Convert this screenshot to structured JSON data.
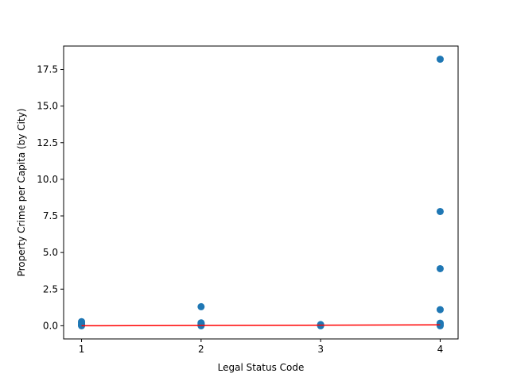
{
  "chart_data": {
    "type": "scatter",
    "title": "",
    "xlabel": "Legal Status Code",
    "ylabel": "Property Crime per Capita (by City)",
    "xlim": [
      0.85,
      4.15
    ],
    "ylim": [
      -0.9,
      19.1
    ],
    "xticks": [
      1,
      2,
      3,
      4
    ],
    "xtick_labels": [
      "1",
      "2",
      "3",
      "4"
    ],
    "yticks": [
      0.0,
      2.5,
      5.0,
      7.5,
      10.0,
      12.5,
      15.0,
      17.5
    ],
    "ytick_labels": [
      "0.0",
      "2.5",
      "5.0",
      "7.5",
      "10.0",
      "12.5",
      "15.0",
      "17.5"
    ],
    "grid": false,
    "series": [
      {
        "kind": "scatter",
        "color": "#1f77b4",
        "points": [
          {
            "x": 1,
            "y": 0.28
          },
          {
            "x": 1,
            "y": 0.2
          },
          {
            "x": 1,
            "y": 0.12
          },
          {
            "x": 1,
            "y": 0.06
          },
          {
            "x": 1,
            "y": 0.02
          },
          {
            "x": 1,
            "y": 0.0
          },
          {
            "x": 2,
            "y": 1.3
          },
          {
            "x": 2,
            "y": 0.2
          },
          {
            "x": 2,
            "y": 0.15
          },
          {
            "x": 2,
            "y": 0.1
          },
          {
            "x": 2,
            "y": 0.05
          },
          {
            "x": 2,
            "y": 0.02
          },
          {
            "x": 2,
            "y": 0.0
          },
          {
            "x": 3,
            "y": 0.08
          },
          {
            "x": 3,
            "y": 0.04
          },
          {
            "x": 3,
            "y": 0.02
          },
          {
            "x": 3,
            "y": 0.0
          },
          {
            "x": 4,
            "y": 18.2
          },
          {
            "x": 4,
            "y": 7.8
          },
          {
            "x": 4,
            "y": 3.9
          },
          {
            "x": 4,
            "y": 1.1
          },
          {
            "x": 4,
            "y": 0.18
          },
          {
            "x": 4,
            "y": 0.1
          },
          {
            "x": 4,
            "y": 0.04
          },
          {
            "x": 4,
            "y": 0.0
          }
        ]
      },
      {
        "kind": "line",
        "color": "#ff0000",
        "points": [
          {
            "x": 1,
            "y": 0.0
          },
          {
            "x": 4,
            "y": 0.06
          }
        ]
      }
    ]
  }
}
